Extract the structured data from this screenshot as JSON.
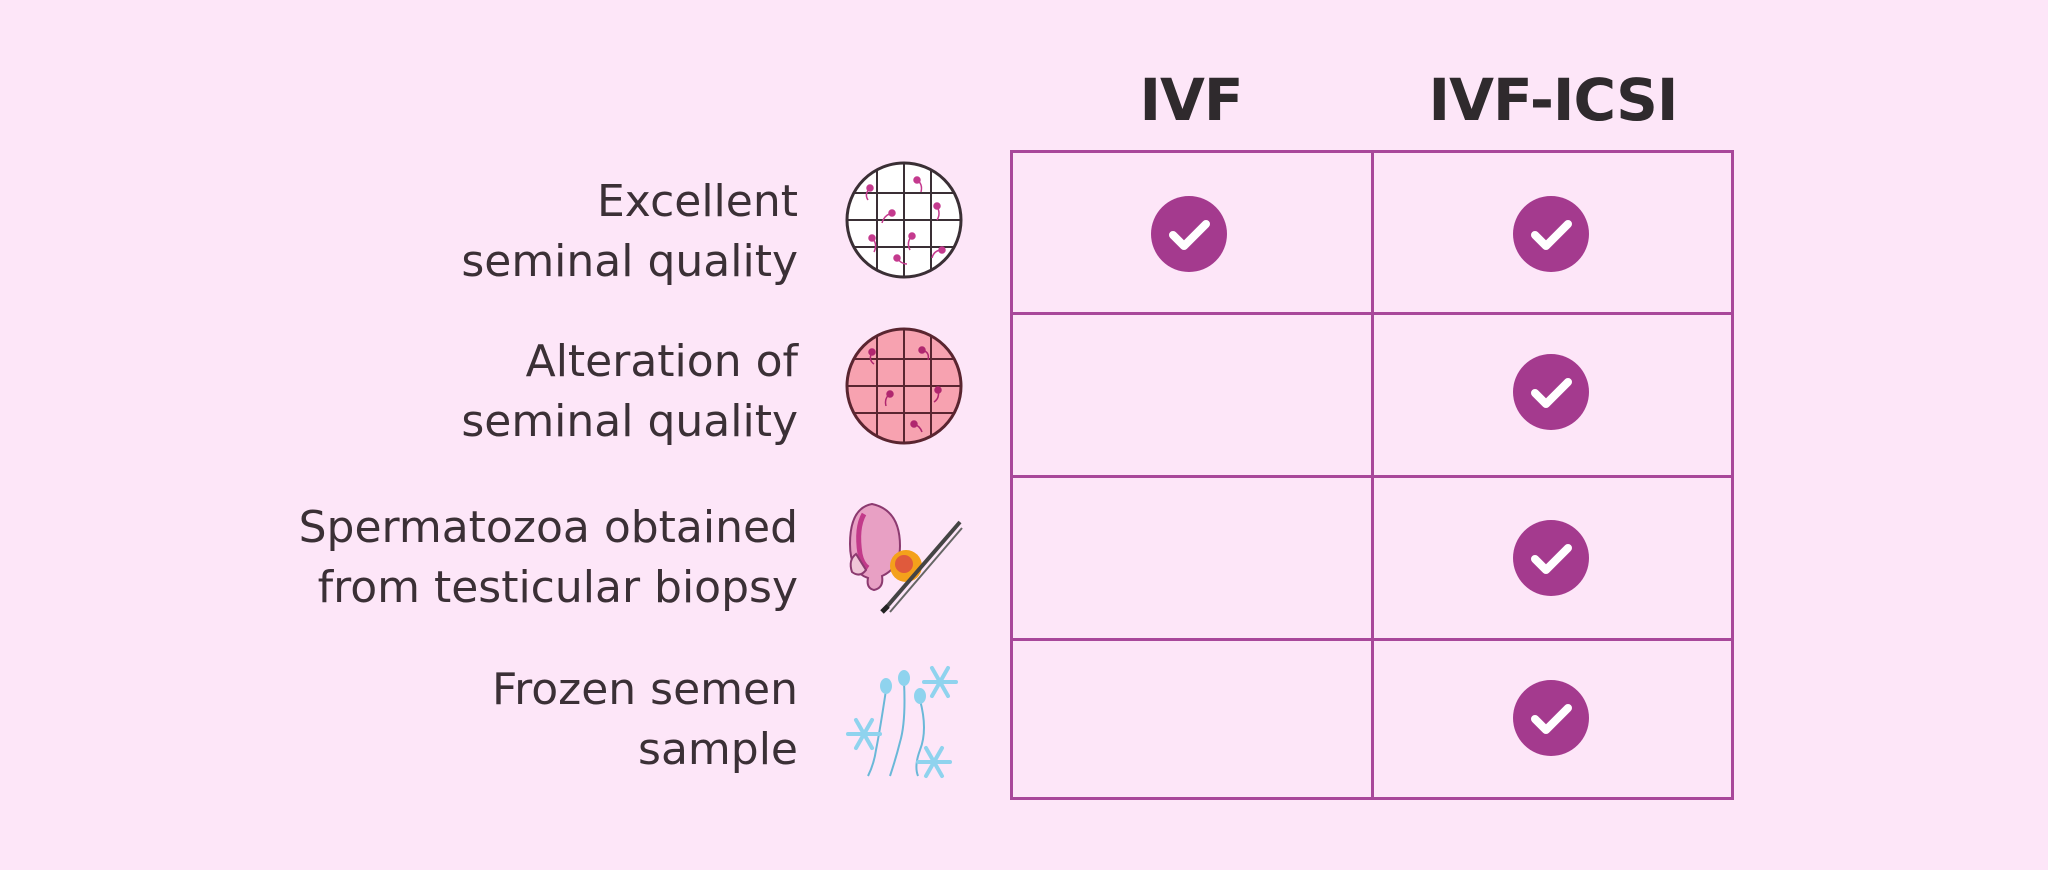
{
  "columns": {
    "ivf": "IVF",
    "ivf_icsi": "IVF-ICSI"
  },
  "rows": [
    {
      "line1": "Excellent",
      "line2": "seminal quality",
      "icon": "normal-sperm-sample-icon",
      "ivf": true,
      "ivf_icsi": true
    },
    {
      "line1": "Alteration of",
      "line2": "seminal quality",
      "icon": "altered-sperm-sample-icon",
      "ivf": false,
      "ivf_icsi": true
    },
    {
      "line1": "Spermatozoa obtained",
      "line2": "from testicular biopsy",
      "icon": "testicular-biopsy-icon",
      "ivf": false,
      "ivf_icsi": true
    },
    {
      "line1": "Frozen semen",
      "line2": "sample",
      "icon": "frozen-sperm-icon",
      "ivf": false,
      "ivf_icsi": true
    }
  ],
  "colors": {
    "background": "#fde6f8",
    "grid": "#a8479a",
    "check": "#a43a8e",
    "altered_sample": "#f7a2b0"
  }
}
